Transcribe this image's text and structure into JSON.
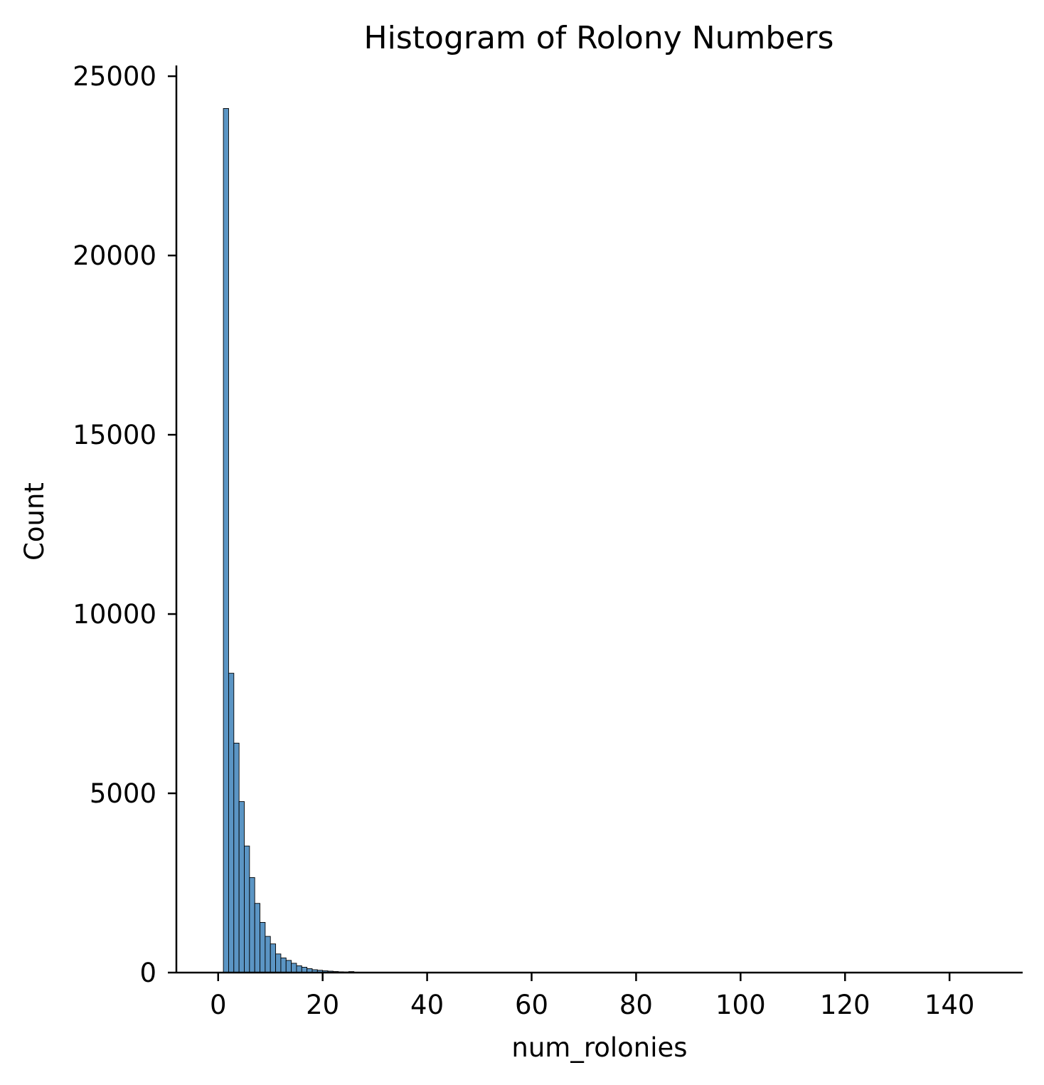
{
  "chart_data": {
    "type": "bar",
    "title": "Histogram of Rolony Numbers",
    "xlabel": "num_rolonies",
    "ylabel": "Count",
    "xlim": [
      -8,
      154
    ],
    "ylim": [
      0,
      25300
    ],
    "x_ticks": [
      0,
      20,
      40,
      60,
      80,
      100,
      120,
      140
    ],
    "y_ticks": [
      0,
      5000,
      10000,
      15000,
      20000,
      25000
    ],
    "bar_color": "#5b95c4",
    "bar_edge_color": "#000000",
    "grid": false,
    "legend": "none",
    "bin_width": 1,
    "bins": [
      {
        "x0": 1,
        "x1": 2,
        "count": 24100
      },
      {
        "x0": 2,
        "x1": 3,
        "count": 8350
      },
      {
        "x0": 3,
        "x1": 4,
        "count": 6400
      },
      {
        "x0": 4,
        "x1": 5,
        "count": 4770
      },
      {
        "x0": 5,
        "x1": 6,
        "count": 3530
      },
      {
        "x0": 6,
        "x1": 7,
        "count": 2650
      },
      {
        "x0": 7,
        "x1": 8,
        "count": 1930
      },
      {
        "x0": 8,
        "x1": 9,
        "count": 1400
      },
      {
        "x0": 9,
        "x1": 10,
        "count": 1010
      },
      {
        "x0": 10,
        "x1": 11,
        "count": 800
      },
      {
        "x0": 11,
        "x1": 12,
        "count": 520
      },
      {
        "x0": 12,
        "x1": 13,
        "count": 410
      },
      {
        "x0": 13,
        "x1": 14,
        "count": 340
      },
      {
        "x0": 14,
        "x1": 15,
        "count": 260
      },
      {
        "x0": 15,
        "x1": 16,
        "count": 190
      },
      {
        "x0": 16,
        "x1": 17,
        "count": 150
      },
      {
        "x0": 17,
        "x1": 18,
        "count": 110
      },
      {
        "x0": 18,
        "x1": 19,
        "count": 80
      },
      {
        "x0": 19,
        "x1": 20,
        "count": 65
      },
      {
        "x0": 20,
        "x1": 21,
        "count": 50
      },
      {
        "x0": 21,
        "x1": 22,
        "count": 40
      },
      {
        "x0": 22,
        "x1": 23,
        "count": 30
      },
      {
        "x0": 23,
        "x1": 24,
        "count": 22
      },
      {
        "x0": 24,
        "x1": 25,
        "count": 18
      },
      {
        "x0": 25,
        "x1": 26,
        "count": 28
      },
      {
        "x0": 26,
        "x1": 27,
        "count": 12
      },
      {
        "x0": 27,
        "x1": 28,
        "count": 9
      },
      {
        "x0": 28,
        "x1": 29,
        "count": 7
      },
      {
        "x0": 29,
        "x1": 30,
        "count": 5
      },
      {
        "x0": 30,
        "x1": 31,
        "count": 4
      },
      {
        "x0": 31,
        "x1": 32,
        "count": 3
      },
      {
        "x0": 32,
        "x1": 33,
        "count": 3
      },
      {
        "x0": 33,
        "x1": 34,
        "count": 2
      },
      {
        "x0": 34,
        "x1": 35,
        "count": 2
      },
      {
        "x0": 35,
        "x1": 36,
        "count": 2
      },
      {
        "x0": 36,
        "x1": 37,
        "count": 1
      },
      {
        "x0": 37,
        "x1": 38,
        "count": 1
      },
      {
        "x0": 38,
        "x1": 39,
        "count": 1
      },
      {
        "x0": 39,
        "x1": 40,
        "count": 1
      },
      {
        "x0": 40,
        "x1": 41,
        "count": 1
      }
    ]
  }
}
